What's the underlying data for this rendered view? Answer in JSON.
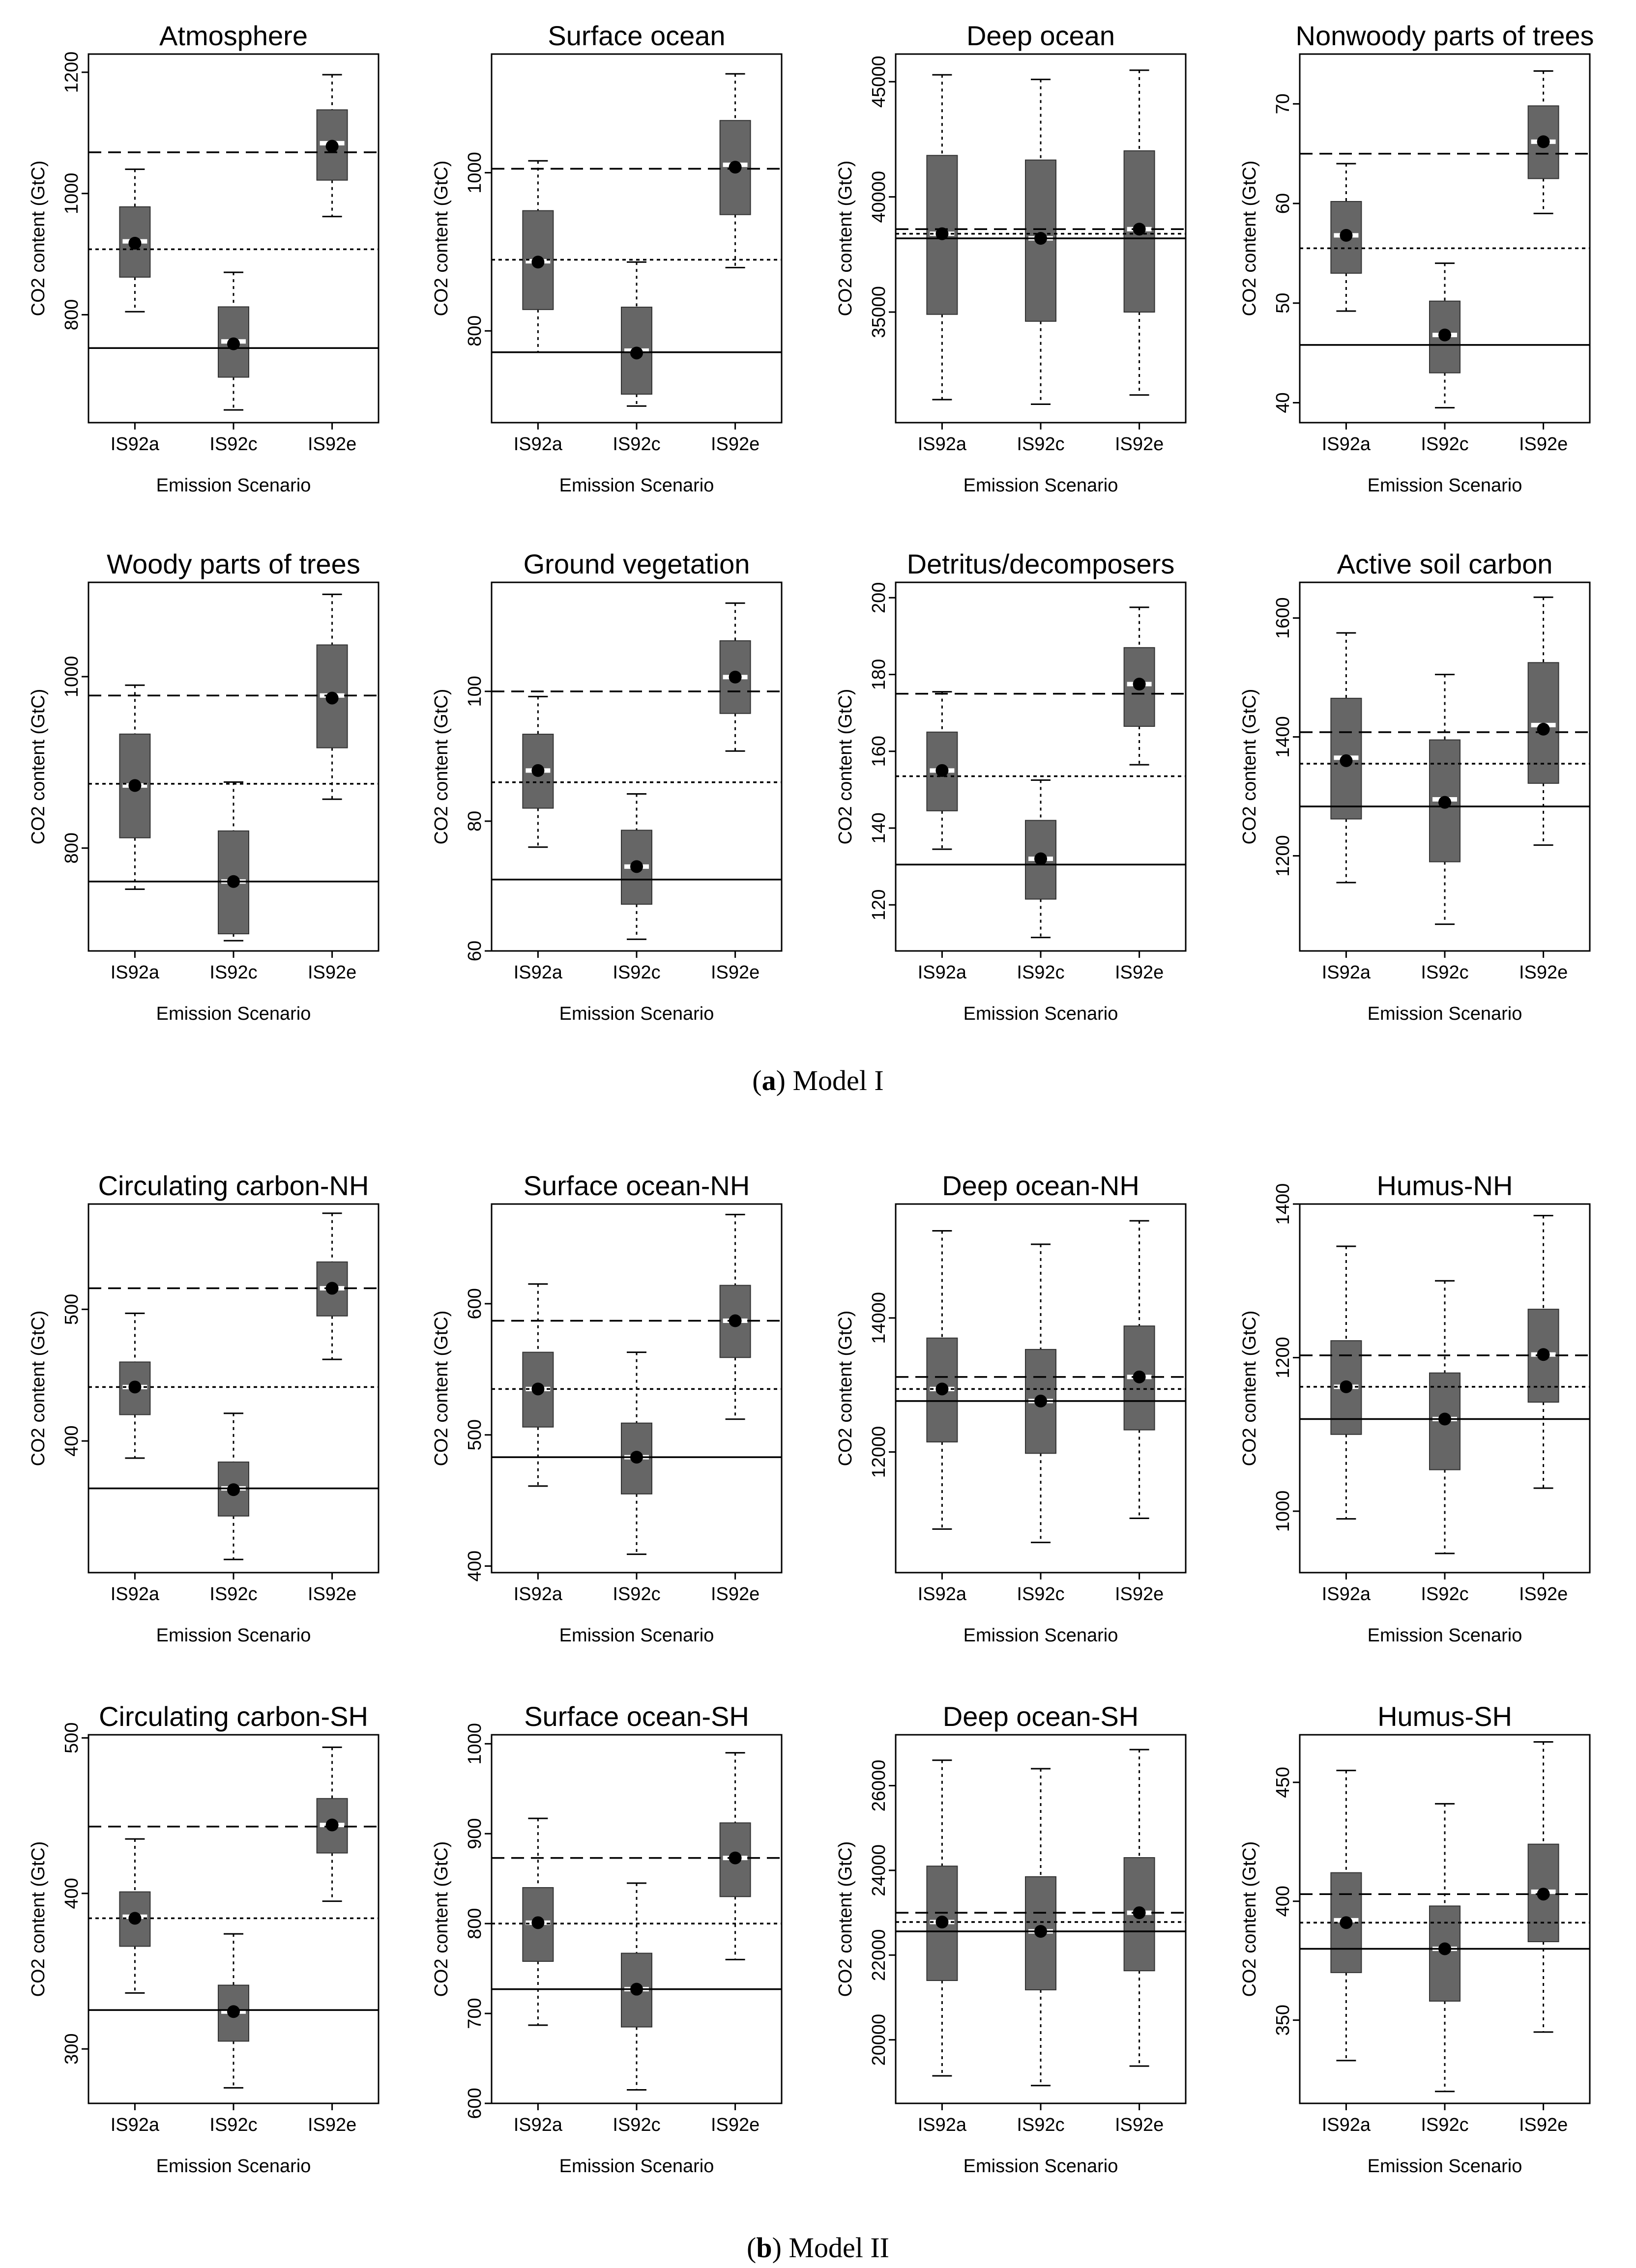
{
  "labels": {
    "ylabel": "CO2 content (GtC)",
    "xlabel": "Emission Scenario"
  },
  "captions": {
    "a_letter": "a",
    "a_text": "Model I",
    "b_letter": "b",
    "b_text": "Model II"
  },
  "colors": {
    "box": "#666666",
    "median": "#ffffff",
    "mean": "#000000",
    "line": "#000000"
  },
  "chart_data": [
    {
      "type": "box",
      "title": "Atmosphere",
      "categories": [
        "IS92a",
        "IS92c",
        "IS92e"
      ],
      "ylim": [
        622,
        1230
      ],
      "yticks": [
        800,
        1000,
        1200
      ],
      "boxes": [
        {
          "min": 805,
          "q1": 862,
          "median": 921,
          "q3": 978,
          "max": 1040,
          "mean": 918
        },
        {
          "min": 643,
          "q1": 697,
          "median": 756,
          "q3": 813,
          "max": 870,
          "mean": 752
        },
        {
          "min": 962,
          "q1": 1022,
          "median": 1083,
          "q3": 1138,
          "max": 1196,
          "mean": 1078
        }
      ],
      "ref_lines": {
        "dashed": 1068,
        "dotted": 908,
        "solid": 745
      }
    },
    {
      "type": "box",
      "title": "Surface ocean",
      "categories": [
        "IS92a",
        "IS92c",
        "IS92e"
      ],
      "ylim": [
        684,
        1150
      ],
      "yticks": [
        800,
        1000
      ],
      "boxes": [
        {
          "min": 773,
          "q1": 827,
          "median": 888,
          "q3": 952,
          "max": 1015,
          "mean": 887
        },
        {
          "min": 705,
          "q1": 720,
          "median": 775,
          "q3": 830,
          "max": 887,
          "mean": 772
        },
        {
          "min": 880,
          "q1": 947,
          "median": 1010,
          "q3": 1066,
          "max": 1125,
          "mean": 1007
        }
      ],
      "ref_lines": {
        "dashed": 1005,
        "dotted": 890,
        "solid": 773
      }
    },
    {
      "type": "box",
      "title": "Deep ocean",
      "categories": [
        "IS92a",
        "IS92c",
        "IS92e"
      ],
      "ylim": [
        30200,
        46200
      ],
      "yticks": [
        35000,
        40000,
        45000
      ],
      "boxes": [
        {
          "min": 31200,
          "q1": 34900,
          "median": 38400,
          "q3": 41800,
          "max": 45300,
          "mean": 38400
        },
        {
          "min": 31000,
          "q1": 34600,
          "median": 38200,
          "q3": 41600,
          "max": 45100,
          "mean": 38200
        },
        {
          "min": 31400,
          "q1": 35000,
          "median": 38600,
          "q3": 42000,
          "max": 45500,
          "mean": 38600
        }
      ],
      "ref_lines": {
        "dashed": 38600,
        "dotted": 38400,
        "solid": 38200
      }
    },
    {
      "type": "box",
      "title": "Nonwoody parts of trees",
      "categories": [
        "IS92a",
        "IS92c",
        "IS92e"
      ],
      "ylim": [
        38,
        75
      ],
      "yticks": [
        40,
        50,
        60,
        70
      ],
      "boxes": [
        {
          "min": 49.2,
          "q1": 53.0,
          "median": 56.8,
          "q3": 60.2,
          "max": 64.0,
          "mean": 56.8
        },
        {
          "min": 39.5,
          "q1": 43.0,
          "median": 46.8,
          "q3": 50.2,
          "max": 54.0,
          "mean": 46.8
        },
        {
          "min": 59.0,
          "q1": 62.5,
          "median": 66.2,
          "q3": 69.8,
          "max": 73.3,
          "mean": 66.2
        }
      ],
      "ref_lines": {
        "dashed": 65.0,
        "dotted": 55.5,
        "solid": 45.8
      }
    },
    {
      "type": "box",
      "title": "Woody parts of trees",
      "categories": [
        "IS92a",
        "IS92c",
        "IS92e"
      ],
      "ylim": [
        680,
        1110
      ],
      "yticks": [
        800,
        1000
      ],
      "boxes": [
        {
          "min": 752,
          "q1": 812,
          "median": 873,
          "q3": 933,
          "max": 990,
          "mean": 873
        },
        {
          "min": 692,
          "q1": 700,
          "median": 761,
          "q3": 820,
          "max": 877,
          "mean": 761
        },
        {
          "min": 857,
          "q1": 917,
          "median": 978,
          "q3": 1037,
          "max": 1096,
          "mean": 975
        }
      ],
      "ref_lines": {
        "dashed": 978,
        "dotted": 875,
        "solid": 761
      }
    },
    {
      "type": "box",
      "title": "Ground vegetation",
      "categories": [
        "IS92a",
        "IS92c",
        "IS92e"
      ],
      "ylim": [
        60,
        116.8
      ],
      "yticks": [
        60,
        80,
        100
      ],
      "boxes": [
        {
          "min": 76.0,
          "q1": 82.0,
          "median": 87.8,
          "q3": 93.4,
          "max": 99.2,
          "mean": 87.8
        },
        {
          "min": 61.8,
          "q1": 67.2,
          "median": 73.0,
          "q3": 78.6,
          "max": 84.2,
          "mean": 73.0
        },
        {
          "min": 90.8,
          "q1": 96.6,
          "median": 102.2,
          "q3": 107.8,
          "max": 113.6,
          "mean": 102.2
        }
      ],
      "ref_lines": {
        "dashed": 100.0,
        "dotted": 86.0,
        "solid": 71.0
      }
    },
    {
      "type": "box",
      "title": "Detritus/decomposers",
      "categories": [
        "IS92a",
        "IS92c",
        "IS92e"
      ],
      "ylim": [
        108,
        204
      ],
      "yticks": [
        120,
        140,
        160,
        180,
        200
      ],
      "boxes": [
        {
          "min": 134.5,
          "q1": 144.5,
          "median": 155.0,
          "q3": 165.0,
          "max": 175.5,
          "mean": 155.0
        },
        {
          "min": 111.5,
          "q1": 121.5,
          "median": 132.0,
          "q3": 142.0,
          "max": 152.5,
          "mean": 132.0
        },
        {
          "min": 156.5,
          "q1": 166.5,
          "median": 177.5,
          "q3": 187.0,
          "max": 197.5,
          "mean": 177.5
        }
      ],
      "ref_lines": {
        "dashed": 175.0,
        "dotted": 153.5,
        "solid": 130.5
      }
    },
    {
      "type": "box",
      "title": "Active soil carbon",
      "categories": [
        "IS92a",
        "IS92c",
        "IS92e"
      ],
      "ylim": [
        1040,
        1660
      ],
      "yticks": [
        1200,
        1400,
        1600
      ],
      "boxes": [
        {
          "min": 1155,
          "q1": 1262,
          "median": 1365,
          "q3": 1465,
          "max": 1575,
          "mean": 1360
        },
        {
          "min": 1085,
          "q1": 1190,
          "median": 1295,
          "q3": 1395,
          "max": 1505,
          "mean": 1290
        },
        {
          "min": 1218,
          "q1": 1322,
          "median": 1420,
          "q3": 1525,
          "max": 1635,
          "mean": 1413
        }
      ],
      "ref_lines": {
        "dashed": 1408,
        "dotted": 1355,
        "solid": 1283
      }
    },
    {
      "type": "box",
      "title": "Circulating carbon-NH",
      "categories": [
        "IS92a",
        "IS92c",
        "IS92e"
      ],
      "ylim": [
        300,
        580
      ],
      "yticks": [
        400,
        500
      ],
      "boxes": [
        {
          "min": 387,
          "q1": 420,
          "median": 441,
          "q3": 460,
          "max": 497,
          "mean": 441
        },
        {
          "min": 310,
          "q1": 343,
          "median": 364,
          "q3": 384,
          "max": 421,
          "mean": 363
        },
        {
          "min": 462,
          "q1": 495,
          "median": 516,
          "q3": 536,
          "max": 573,
          "mean": 516
        }
      ],
      "ref_lines": {
        "dashed": 516,
        "dotted": 441,
        "solid": 364
      }
    },
    {
      "type": "box",
      "title": "Surface ocean-NH",
      "categories": [
        "IS92a",
        "IS92c",
        "IS92e"
      ],
      "ylim": [
        395,
        676
      ],
      "yticks": [
        400,
        500,
        600
      ],
      "boxes": [
        {
          "min": 461,
          "q1": 506,
          "median": 535,
          "q3": 563,
          "max": 615,
          "mean": 535
        },
        {
          "min": 409,
          "q1": 455,
          "median": 483,
          "q3": 509,
          "max": 563,
          "mean": 483
        },
        {
          "min": 512,
          "q1": 559,
          "median": 587,
          "q3": 614,
          "max": 668,
          "mean": 587
        }
      ],
      "ref_lines": {
        "dashed": 587,
        "dotted": 535,
        "solid": 483
      }
    },
    {
      "type": "box",
      "title": "Deep ocean-NH",
      "categories": [
        "IS92a",
        "IS92c",
        "IS92e"
      ],
      "ylim": [
        10200,
        15700
      ],
      "yticks": [
        12000,
        14000
      ],
      "boxes": [
        {
          "min": 10850,
          "q1": 12150,
          "median": 12940,
          "q3": 13700,
          "max": 15300,
          "mean": 12940
        },
        {
          "min": 10650,
          "q1": 11980,
          "median": 12760,
          "q3": 13530,
          "max": 15100,
          "mean": 12760
        },
        {
          "min": 11010,
          "q1": 12330,
          "median": 13120,
          "q3": 13880,
          "max": 15450,
          "mean": 13120
        }
      ],
      "ref_lines": {
        "dashed": 13120,
        "dotted": 12940,
        "solid": 12760
      }
    },
    {
      "type": "box",
      "title": "Humus-NH",
      "categories": [
        "IS92a",
        "IS92c",
        "IS92e"
      ],
      "ylim": [
        920,
        1400
      ],
      "yticks": [
        1000,
        1200,
        1400
      ],
      "boxes": [
        {
          "min": 990,
          "q1": 1100,
          "median": 1162,
          "q3": 1222,
          "max": 1345,
          "mean": 1162
        },
        {
          "min": 945,
          "q1": 1054,
          "median": 1120,
          "q3": 1180,
          "max": 1300,
          "mean": 1120
        },
        {
          "min": 1030,
          "q1": 1142,
          "median": 1204,
          "q3": 1263,
          "max": 1385,
          "mean": 1204
        }
      ],
      "ref_lines": {
        "dashed": 1203,
        "dotted": 1162,
        "solid": 1120
      }
    },
    {
      "type": "box",
      "title": "Circulating carbon-SH",
      "categories": [
        "IS92a",
        "IS92c",
        "IS92e"
      ],
      "ylim": [
        265,
        502
      ],
      "yticks": [
        300,
        400,
        500
      ],
      "boxes": [
        {
          "min": 336,
          "q1": 366,
          "median": 385,
          "q3": 401,
          "max": 435,
          "mean": 384
        },
        {
          "min": 275,
          "q1": 305,
          "median": 324,
          "q3": 341,
          "max": 374,
          "mean": 324
        },
        {
          "min": 395,
          "q1": 426,
          "median": 444,
          "q3": 461,
          "max": 494,
          "mean": 444
        }
      ],
      "ref_lines": {
        "dashed": 443,
        "dotted": 384,
        "solid": 325
      }
    },
    {
      "type": "box",
      "title": "Surface ocean-SH",
      "categories": [
        "IS92a",
        "IS92c",
        "IS92e"
      ],
      "ylim": [
        600,
        1010
      ],
      "yticks": [
        600,
        700,
        800,
        900,
        1000
      ],
      "boxes": [
        {
          "min": 687,
          "q1": 758,
          "median": 801,
          "q3": 840,
          "max": 917,
          "mean": 801
        },
        {
          "min": 615,
          "q1": 685,
          "median": 727,
          "q3": 767,
          "max": 845,
          "mean": 727
        },
        {
          "min": 760,
          "q1": 830,
          "median": 873,
          "q3": 912,
          "max": 990,
          "mean": 873
        }
      ],
      "ref_lines": {
        "dashed": 873,
        "dotted": 800,
        "solid": 727
      }
    },
    {
      "type": "box",
      "title": "Deep ocean-SH",
      "categories": [
        "IS92a",
        "IS92c",
        "IS92e"
      ],
      "ylim": [
        18500,
        27200
      ],
      "yticks": [
        20000,
        22000,
        24000,
        26000
      ],
      "boxes": [
        {
          "min": 19150,
          "q1": 21400,
          "median": 22780,
          "q3": 24100,
          "max": 26600,
          "mean": 22780
        },
        {
          "min": 18920,
          "q1": 21180,
          "median": 22560,
          "q3": 23850,
          "max": 26400,
          "mean": 22560
        },
        {
          "min": 19380,
          "q1": 21630,
          "median": 23000,
          "q3": 24300,
          "max": 26850,
          "mean": 23000
        }
      ],
      "ref_lines": {
        "dashed": 23000,
        "dotted": 22780,
        "solid": 22560
      }
    },
    {
      "type": "box",
      "title": "Humus-SH",
      "categories": [
        "IS92a",
        "IS92c",
        "IS92e"
      ],
      "ylim": [
        315,
        470
      ],
      "yticks": [
        350,
        400,
        450
      ],
      "boxes": [
        {
          "min": 333,
          "q1": 370,
          "median": 392,
          "q3": 412,
          "max": 455,
          "mean": 391
        },
        {
          "min": 320,
          "q1": 358,
          "median": 380,
          "q3": 398,
          "max": 441,
          "mean": 380
        },
        {
          "min": 345,
          "q1": 383,
          "median": 404,
          "q3": 424,
          "max": 467,
          "mean": 403
        }
      ],
      "ref_lines": {
        "dashed": 403,
        "dotted": 391,
        "solid": 380
      }
    }
  ]
}
